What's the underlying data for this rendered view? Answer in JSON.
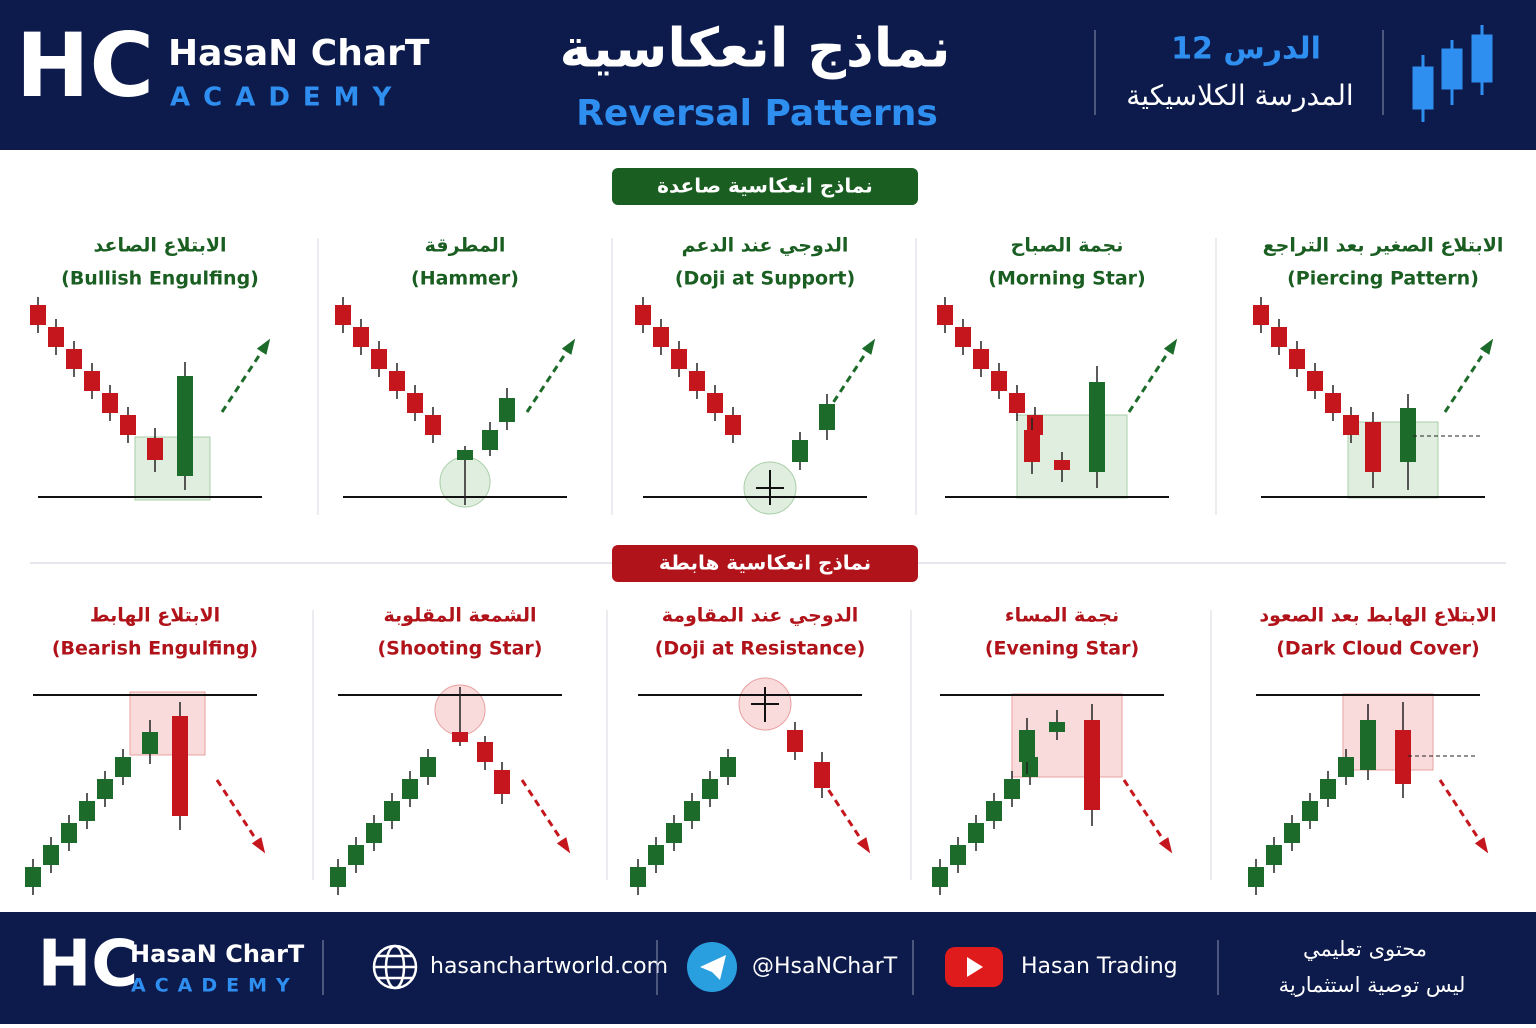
{
  "header": {
    "logo": "HC",
    "brand_name": "HasaN CharT",
    "brand_sub": "ACADEMY",
    "title_ar": "نماذج انعكاسية",
    "title_en": "Reversal Patterns",
    "lesson": "الدرس 12",
    "school": "المدرسة الكلاسيكية"
  },
  "bullish": {
    "label": "نماذج انعكاسية صاعدة",
    "patterns": [
      {
        "ar": "الابتلاع الصاعد",
        "en": "(Bullish Engulfing)"
      },
      {
        "ar": "المطرقة",
        "en": "(Hammer)"
      },
      {
        "ar": "الدوجي عند الدعم",
        "en": "(Doji at Support)"
      },
      {
        "ar": "نجمة الصباح",
        "en": "(Morning Star)"
      },
      {
        "ar": "الابتلاع الصغير بعد التراجع",
        "en": "(Piercing Pattern)"
      }
    ]
  },
  "bearish": {
    "label": "نماذج انعكاسية هابطة",
    "patterns": [
      {
        "ar": "الابتلاع الهابط",
        "en": "(Bearish Engulfing)"
      },
      {
        "ar": "الشمعة المقلوبة",
        "en": "(Shooting Star)"
      },
      {
        "ar": "الدوجي عند المقاومة",
        "en": "(Doji at Resistance)"
      },
      {
        "ar": "نجمة المساء",
        "en": "(Evening Star)"
      },
      {
        "ar": "الابتلاع الهابط بعد الصعود",
        "en": "(Dark Cloud Cover)"
      }
    ]
  },
  "footer": {
    "logo": "HC",
    "brand_name": "HasaN CharT",
    "brand_sub": "ACADEMY",
    "website": "hasanchartworld.com",
    "telegram": "@HsaNCharT",
    "youtube": "Hasan Trading",
    "note_line1": "محتوى تعليمي",
    "note_line2": "ليس توصية استثمارية"
  }
}
